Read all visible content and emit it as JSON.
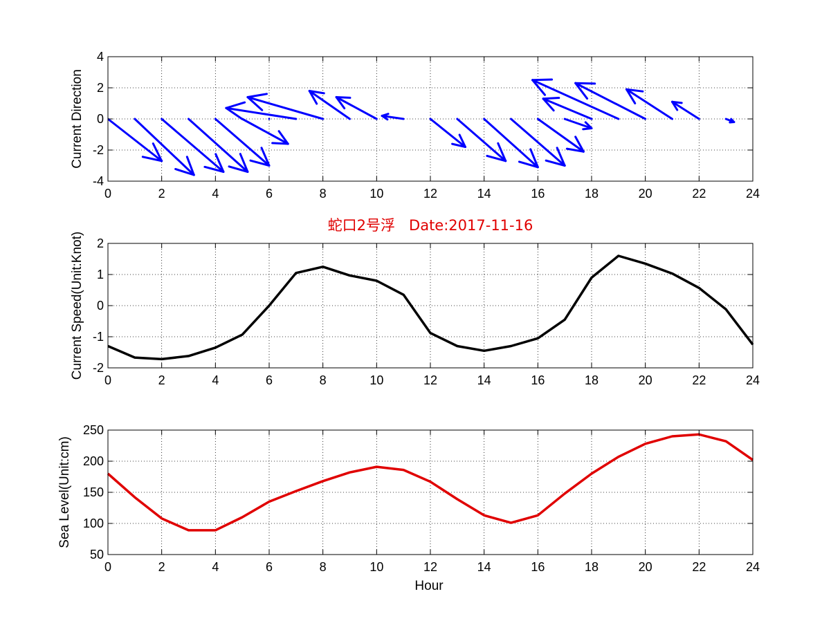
{
  "title": "蛇口2号浮   Date:2017-11-16",
  "colors": {
    "title": "#e00000",
    "arrows": "#0000ff",
    "speed": "#000000",
    "sea_level": "#e00000"
  },
  "chart_data": [
    {
      "type": "quiver",
      "ylabel": "Current Direction",
      "xlabel": "",
      "xlim": [
        0,
        24
      ],
      "ylim": [
        -4,
        4
      ],
      "xticks": [
        0,
        2,
        4,
        6,
        8,
        10,
        12,
        14,
        16,
        18,
        20,
        22,
        24
      ],
      "yticks": [
        -4,
        -2,
        0,
        2,
        4
      ],
      "grid": true,
      "vectors": [
        {
          "x": 0,
          "u": 2.0,
          "v": -2.7
        },
        {
          "x": 1,
          "u": 2.2,
          "v": -3.6
        },
        {
          "x": 2,
          "u": 2.3,
          "v": -3.4
        },
        {
          "x": 3,
          "u": 2.2,
          "v": -3.4
        },
        {
          "x": 4,
          "u": 2.0,
          "v": -3.0
        },
        {
          "x": 5,
          "u": 1.7,
          "v": -1.6
        },
        {
          "x": 6,
          "u": 0.0,
          "v": 0.0
        },
        {
          "x": 7,
          "u": -2.6,
          "v": 0.7
        },
        {
          "x": 8,
          "u": -2.8,
          "v": 1.4
        },
        {
          "x": 9,
          "u": -1.5,
          "v": 1.8
        },
        {
          "x": 10,
          "u": -1.5,
          "v": 1.4
        },
        {
          "x": 11,
          "u": -0.8,
          "v": 0.2
        },
        {
          "x": 12,
          "u": 1.3,
          "v": -1.8
        },
        {
          "x": 13,
          "u": 1.8,
          "v": -2.7
        },
        {
          "x": 14,
          "u": 2.0,
          "v": -3.1
        },
        {
          "x": 15,
          "u": 2.0,
          "v": -3.0
        },
        {
          "x": 16,
          "u": 1.7,
          "v": -2.1
        },
        {
          "x": 17,
          "u": 1.0,
          "v": -0.6
        },
        {
          "x": 18,
          "u": -1.8,
          "v": 1.3
        },
        {
          "x": 19,
          "u": -3.2,
          "v": 2.5
        },
        {
          "x": 20,
          "u": -2.6,
          "v": 2.3
        },
        {
          "x": 21,
          "u": -1.7,
          "v": 1.9
        },
        {
          "x": 22,
          "u": -1.0,
          "v": 1.1
        },
        {
          "x": 23,
          "u": 0.3,
          "v": -0.2
        }
      ]
    },
    {
      "type": "line",
      "title": "蛇口2号浮   Date:2017-11-16",
      "ylabel": "Current Speed(Unit:Knot)",
      "xlabel": "",
      "xlim": [
        0,
        24
      ],
      "ylim": [
        -2,
        2
      ],
      "xticks": [
        0,
        2,
        4,
        6,
        8,
        10,
        12,
        14,
        16,
        18,
        20,
        22,
        24
      ],
      "yticks": [
        -2,
        -1,
        0,
        1,
        2
      ],
      "grid": true,
      "x": [
        0,
        1,
        2,
        3,
        4,
        5,
        6,
        7,
        8,
        9,
        10,
        11,
        12,
        13,
        14,
        15,
        16,
        17,
        18,
        19,
        20,
        21,
        22,
        23,
        24
      ],
      "series": [
        {
          "values": [
            -1.3,
            -1.67,
            -1.72,
            -1.62,
            -1.35,
            -0.93,
            0.0,
            1.05,
            1.25,
            0.97,
            0.8,
            0.35,
            -0.88,
            -1.3,
            -1.45,
            -1.3,
            -1.05,
            -0.45,
            0.9,
            1.6,
            1.35,
            1.03,
            0.57,
            -0.12,
            -1.25
          ]
        }
      ]
    },
    {
      "type": "line",
      "ylabel": "Sea Level(Unit:cm)",
      "xlabel": "Hour",
      "xlim": [
        0,
        24
      ],
      "ylim": [
        50,
        250
      ],
      "xticks": [
        0,
        2,
        4,
        6,
        8,
        10,
        12,
        14,
        16,
        18,
        20,
        22,
        24
      ],
      "yticks": [
        50,
        100,
        150,
        200,
        250
      ],
      "grid": true,
      "x": [
        0,
        1,
        2,
        3,
        4,
        5,
        6,
        7,
        8,
        9,
        10,
        11,
        12,
        13,
        14,
        15,
        16,
        17,
        18,
        19,
        20,
        21,
        22,
        23,
        24
      ],
      "series": [
        {
          "values": [
            180,
            142,
            108,
            89,
            89,
            110,
            135,
            152,
            168,
            182,
            191,
            186,
            167,
            139,
            113,
            101,
            113,
            148,
            180,
            207,
            228,
            240,
            243,
            232,
            202
          ]
        }
      ]
    }
  ]
}
